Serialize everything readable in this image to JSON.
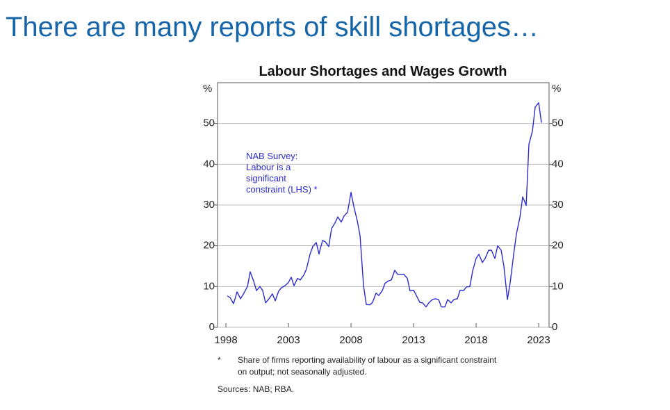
{
  "slide_title": "There are many reports of skill shortages…",
  "chart_data": {
    "type": "line",
    "title": "Labour Shortages and Wages Growth",
    "y_label": "%",
    "y2_label": "%",
    "annotation": [
      "NAB Survey:",
      "Labour is a",
      "significant",
      "constraint (LHS) *"
    ],
    "xlim": [
      1997.33,
      2023.83
    ],
    "xticks": [
      1998,
      2003,
      2008,
      2013,
      2018,
      2023
    ],
    "ylim": [
      0,
      60
    ],
    "yticks": [
      0,
      10,
      20,
      30,
      40,
      50
    ],
    "y2lim": [
      0,
      60
    ],
    "y2ticks": [
      0,
      10,
      20,
      30,
      40,
      50
    ],
    "grid": true,
    "x": [
      1998.11,
      1998.33,
      1998.61,
      1998.89,
      1999.17,
      1999.44,
      1999.72,
      1999.94,
      2000.22,
      2000.44,
      2000.72,
      2000.94,
      2001.17,
      2001.44,
      2001.72,
      2001.94,
      2002.22,
      2002.44,
      2002.72,
      2003.0,
      2003.22,
      2003.44,
      2003.72,
      2003.94,
      2004.22,
      2004.44,
      2004.72,
      2004.94,
      2005.22,
      2005.44,
      2005.72,
      2005.94,
      2006.22,
      2006.44,
      2006.72,
      2006.94,
      2007.22,
      2007.44,
      2007.72,
      2008.0,
      2008.22,
      2008.5,
      2008.72,
      2009.0,
      2009.22,
      2009.5,
      2009.72,
      2010.0,
      2010.22,
      2010.5,
      2010.72,
      2011.0,
      2011.22,
      2011.5,
      2011.72,
      2012.0,
      2012.22,
      2012.5,
      2012.72,
      2013.0,
      2013.22,
      2013.5,
      2013.72,
      2014.0,
      2014.22,
      2014.5,
      2014.72,
      2015.0,
      2015.22,
      2015.5,
      2015.72,
      2016.0,
      2016.22,
      2016.5,
      2016.72,
      2017.0,
      2017.22,
      2017.5,
      2017.72,
      2018.0,
      2018.22,
      2018.5,
      2018.72,
      2019.0,
      2019.22,
      2019.5,
      2019.72,
      2020.0,
      2020.22,
      2020.5,
      2020.72,
      2021.0,
      2021.22,
      2021.5,
      2021.72,
      2022.0,
      2022.22,
      2022.5,
      2022.72,
      2023.0,
      2023.22
    ],
    "series": [
      {
        "color": "#2a2ad0",
        "values": [
          7.7,
          7.3,
          5.8,
          8.7,
          7,
          8.4,
          10,
          13.6,
          11.3,
          9,
          10,
          9,
          6,
          7,
          8.2,
          6.5,
          8.9,
          9.7,
          10.2,
          11,
          12.3,
          10.2,
          12,
          11.6,
          12.8,
          14.3,
          17.9,
          19.8,
          20.8,
          18,
          21.3,
          21,
          19.8,
          24.2,
          25.6,
          27.1,
          25.8,
          27.3,
          28.2,
          33.1,
          29.7,
          26.1,
          22.5,
          10.2,
          5.6,
          5.5,
          6.1,
          8.4,
          7.8,
          9,
          10.8,
          11.4,
          11.6,
          14,
          13,
          13,
          13,
          12,
          8.9,
          9.1,
          7.8,
          6.1,
          6,
          5,
          6,
          6.8,
          7,
          6.8,
          5,
          5,
          6.8,
          6,
          6.8,
          7,
          9.1,
          9,
          9.9,
          10,
          13.8,
          16.9,
          17.9,
          15.9,
          16.9,
          18.9,
          18.9,
          16.9,
          20,
          18.9,
          15,
          6.8,
          10.9,
          17.9,
          22.9,
          27,
          32,
          29.9,
          44.9,
          48.1,
          54,
          55.1,
          50.2
        ]
      }
    ]
  },
  "footnote": {
    "marker": "*",
    "lines": [
      "Share of firms reporting availability of labour as a significant constraint",
      "on output; not seasonally adjusted."
    ]
  },
  "sources": "Sources: NAB; RBA."
}
